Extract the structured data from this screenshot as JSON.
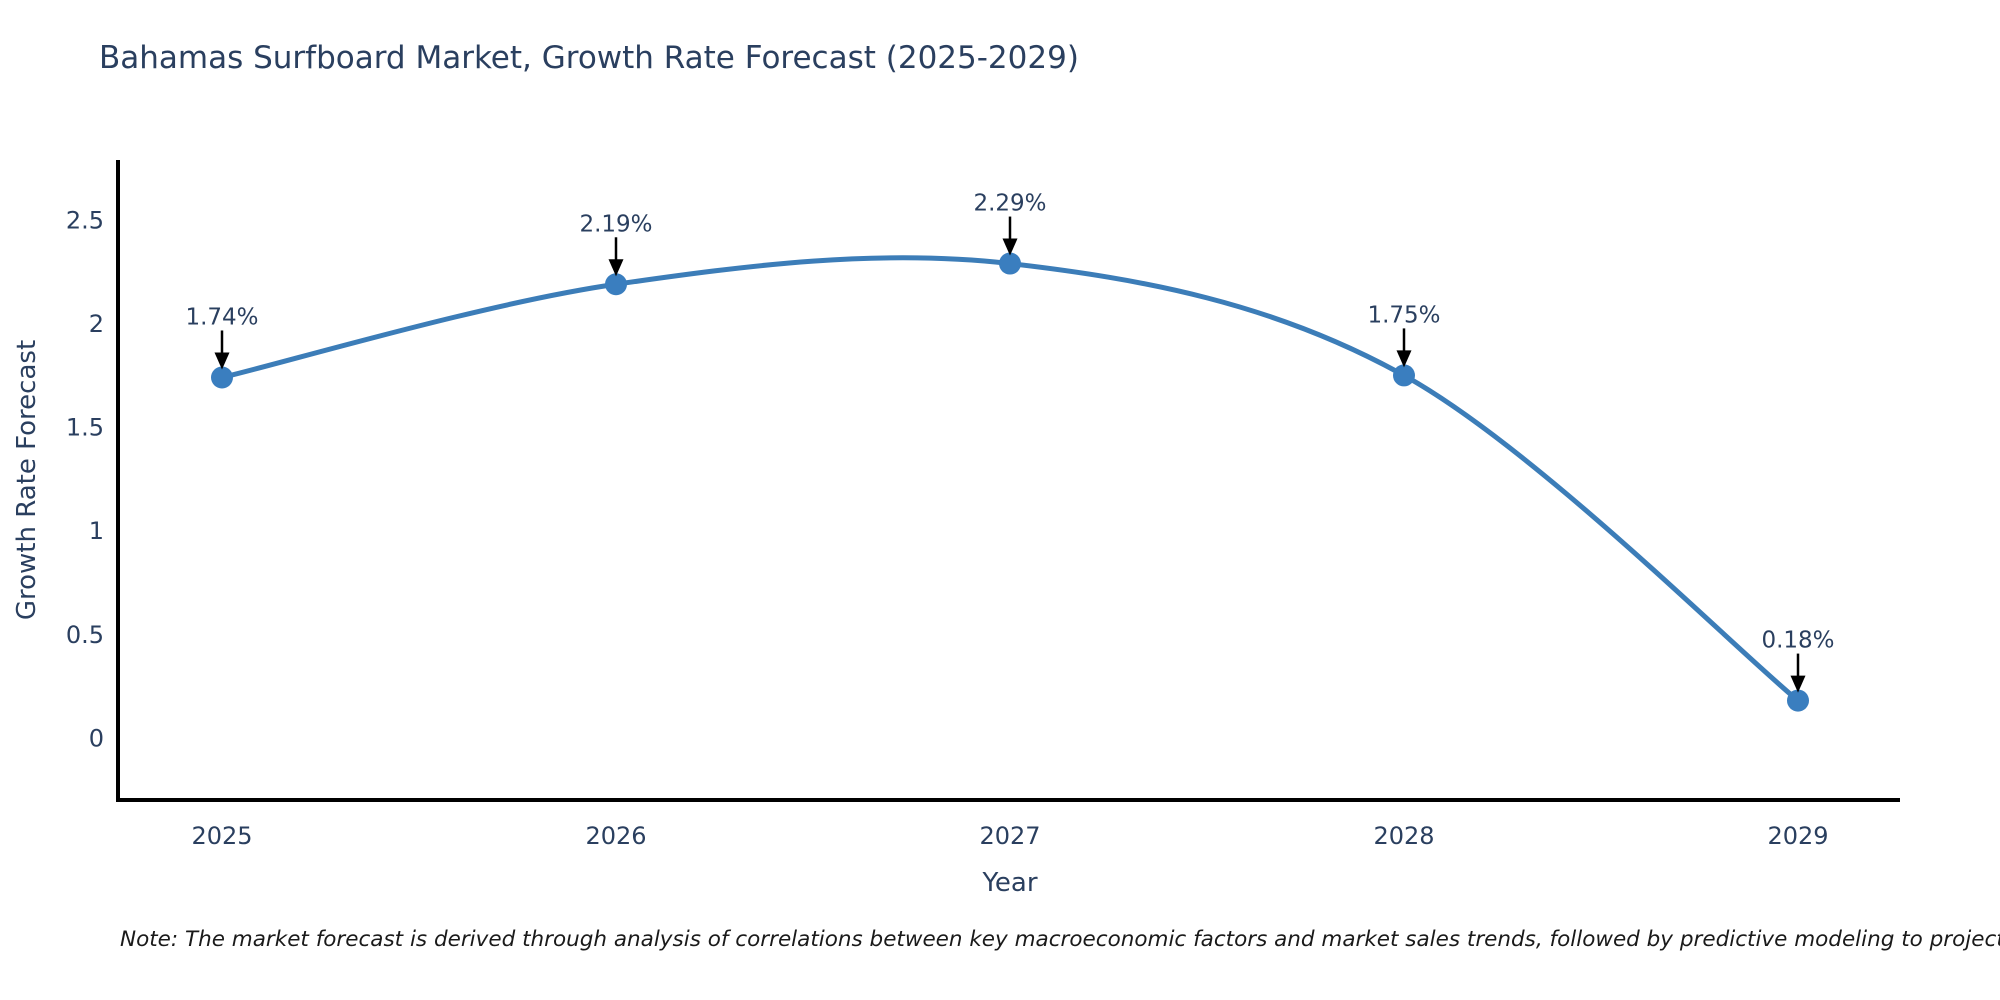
{
  "chart": {
    "title": "Bahamas Surfboard Market, Growth Rate Forecast (2025-2029)",
    "xlabel": "Year",
    "ylabel": "Growth Rate Forecast",
    "note": "Note: The market forecast is derived through analysis of correlations between key macroeconomic factors and market sales trends, followed by predictive modeling to project future sales",
    "colors": {
      "line": "#3c7db8",
      "marker": "#3a7ebf",
      "axis": "#000000",
      "text": "#2a3f5f",
      "arrow": "#000000",
      "note_text": "#1a1a1a",
      "background": "#ffffff"
    }
  },
  "chart_data": {
    "type": "line",
    "title": "Bahamas Surfboard Market, Growth Rate Forecast (2025-2029)",
    "xlabel": "Year",
    "ylabel": "Growth Rate Forecast",
    "x": [
      2025,
      2026,
      2027,
      2028,
      2029
    ],
    "values": [
      1.74,
      2.19,
      2.29,
      1.75,
      0.18
    ],
    "point_labels": [
      "1.74%",
      "2.19%",
      "2.29%",
      "1.75%",
      "0.18%"
    ],
    "xticks": [
      "2025",
      "2026",
      "2027",
      "2028",
      "2029"
    ],
    "yticks": [
      0,
      0.5,
      1,
      1.5,
      2,
      2.5
    ],
    "ytick_labels": [
      "0",
      "0.5",
      "1",
      "1.5",
      "2",
      "2.5"
    ],
    "ylim": [
      -0.3,
      2.79
    ],
    "grid": false,
    "legend": "none",
    "line_shape": "spline",
    "marker": "circle",
    "annotations": "each point labeled with its percent value and a downward black arrow"
  }
}
